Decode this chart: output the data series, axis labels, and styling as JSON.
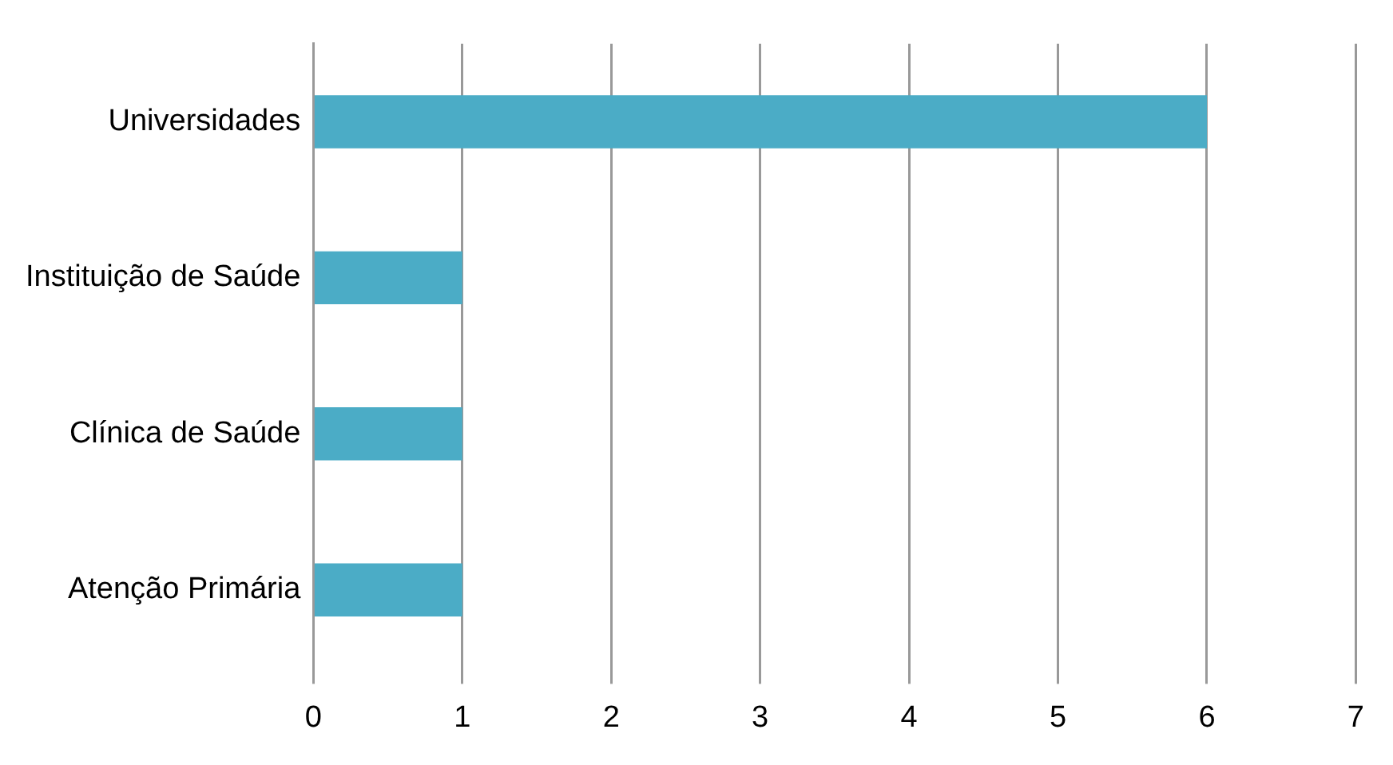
{
  "chart_data": {
    "type": "bar",
    "orientation": "horizontal",
    "categories": [
      "Universidades",
      "Instituição de Saúde",
      "Clínica de Saúde",
      "Atenção Primária"
    ],
    "values": [
      6,
      1,
      1,
      1
    ],
    "color": "#4bacc6",
    "xlim": [
      0,
      7
    ],
    "xticks": [
      0,
      1,
      2,
      3,
      4,
      5,
      6,
      7
    ],
    "grid": "x",
    "legend": false
  }
}
